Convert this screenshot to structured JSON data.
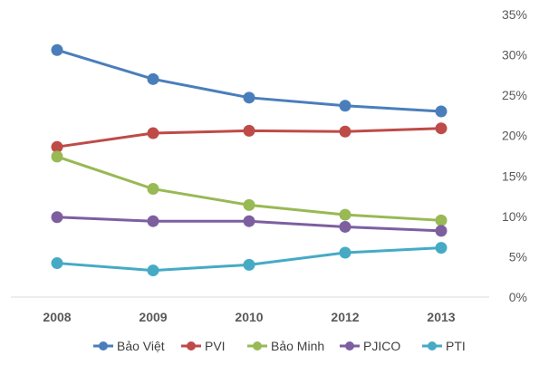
{
  "chart_data": {
    "type": "line",
    "categories": [
      "2008",
      "2009",
      "2010",
      "2012",
      "2013"
    ],
    "ylim": [
      0,
      35
    ],
    "yticks": [
      0,
      5,
      10,
      15,
      20,
      25,
      30,
      35
    ],
    "ytick_labels": [
      "0%",
      "5%",
      "10%",
      "15%",
      "20%",
      "25%",
      "30%",
      "35%"
    ],
    "y_axis_side": "right",
    "grid": false,
    "legend_position": "bottom",
    "series": [
      {
        "name": "Bảo Việt",
        "color": "#4a7ebb",
        "values": [
          30.6,
          27.0,
          24.7,
          23.7,
          23.0
        ]
      },
      {
        "name": "PVI",
        "color": "#be4b48",
        "values": [
          18.6,
          20.3,
          20.6,
          20.5,
          20.9
        ]
      },
      {
        "name": "Bảo Minh",
        "color": "#98b954",
        "values": [
          17.4,
          13.4,
          11.4,
          10.2,
          9.5
        ]
      },
      {
        "name": "PJICO",
        "color": "#7d5fa0",
        "values": [
          9.9,
          9.4,
          9.4,
          8.7,
          8.2
        ]
      },
      {
        "name": "PTI",
        "color": "#46aac5",
        "values": [
          4.2,
          3.3,
          4.0,
          5.5,
          6.1
        ]
      }
    ]
  }
}
